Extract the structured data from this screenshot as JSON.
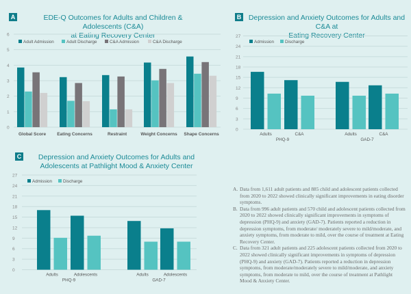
{
  "colors": {
    "background": "#dff0f0",
    "admission": "#0a7f8c",
    "discharge": "#55c3c1",
    "ca_admission": "#787478",
    "ca_discharge": "#d0d0d0",
    "badge": "#0f7d8a",
    "title": "#1a8a96",
    "grid": "#c8dcdc",
    "axis_text": "#8a8a8a"
  },
  "chart_data": [
    {
      "id": "A",
      "type": "bar",
      "badge": "A",
      "title_lines": [
        "EDE-Q Outcomes for Adults and Children & Adolescents (C&A)",
        "at Eating Recovery Center"
      ],
      "categories": [
        "Global Score",
        "Eating Concerns",
        "Restraint",
        "Weight Concerns",
        "Shape Concerns"
      ],
      "series": [
        {
          "name": "Adult Admission",
          "color_key": "admission",
          "values": [
            3.85,
            3.23,
            3.36,
            4.17,
            4.56
          ]
        },
        {
          "name": "Adult Discharge",
          "color_key": "discharge",
          "values": [
            2.3,
            1.7,
            1.15,
            3.02,
            3.45
          ]
        },
        {
          "name": "C&A Admission",
          "color_key": "ca_admission",
          "values": [
            3.54,
            2.85,
            3.27,
            3.76,
            4.2
          ]
        },
        {
          "name": "C&A Discharge",
          "color_key": "ca_discharge",
          "values": [
            2.21,
            1.68,
            1.15,
            2.85,
            3.32
          ]
        }
      ],
      "ylim": [
        0,
        6
      ],
      "yticks": [
        "0",
        "1",
        "2",
        "3",
        "4",
        "5",
        "6"
      ],
      "grid": true,
      "legend": "top-left",
      "xlabel": "",
      "ylabel": ""
    },
    {
      "id": "B",
      "type": "bar",
      "badge": "B",
      "title_lines": [
        "Depression and Anxiety Outcomes for Adults and C&A at",
        "Eating Recovery Center"
      ],
      "groups": [
        {
          "label": "PHQ-9",
          "categories": [
            "Adults",
            "C&A"
          ]
        },
        {
          "label": "GAD-7",
          "categories": [
            "Adults",
            "C&A"
          ]
        }
      ],
      "series": [
        {
          "name": "Admission",
          "color_key": "admission",
          "values": [
            16.6,
            14.2,
            13.7,
            12.7
          ]
        },
        {
          "name": "Discharge",
          "color_key": "discharge",
          "values": [
            10.3,
            9.7,
            9.7,
            10.3
          ]
        }
      ],
      "ylim": [
        0,
        27
      ],
      "yticks": [
        "0",
        "3",
        "6",
        "9",
        "12",
        "15",
        "18",
        "21",
        "24",
        "27"
      ],
      "grid": true,
      "legend": "top-left",
      "xlabel": "",
      "ylabel": ""
    },
    {
      "id": "C",
      "type": "bar",
      "badge": "C",
      "title_lines": [
        "Depression and Anxiety Outcomes for Adults and",
        "Adolescents at Pathlight Mood & Anxiety Center"
      ],
      "groups": [
        {
          "label": "PHQ-9",
          "categories": [
            "Adults",
            "Adolescents"
          ]
        },
        {
          "label": "GAD-7",
          "categories": [
            "Adults",
            "Adolescents"
          ]
        }
      ],
      "series": [
        {
          "name": "Admission",
          "color_key": "admission",
          "values": [
            17.0,
            15.4,
            13.9,
            11.8
          ]
        },
        {
          "name": "Discharge",
          "color_key": "discharge",
          "values": [
            9.1,
            9.7,
            8.0,
            8.0
          ]
        }
      ],
      "ylim": [
        0,
        27
      ],
      "yticks": [
        "0",
        "3",
        "6",
        "9",
        "12",
        "15",
        "18",
        "21",
        "24",
        "27"
      ],
      "grid": true,
      "legend": "top-left",
      "xlabel": "",
      "ylabel": ""
    }
  ],
  "notes": [
    {
      "letter": "A.",
      "text": "Data from 1,611 adult patients and 885 child and adolescent patients collected from 2020 to 2022 showed clinically significant improvements in eating disorder symptoms."
    },
    {
      "letter": "B.",
      "text": "Data from 996 adult patients and 570 child and adolescent patients collected from 2020 to 2022 showed clinically significant improvements in symptoms of depression (PHQ-9) and anxiety (GAD-7). Patients reported a reduction in depression symptoms, from moderate/ moderately severe to mild/moderate, and anxiety symptoms, from moderate to mild, over the course of treatment at Eating Recovery Center."
    },
    {
      "letter": "C.",
      "text": "Data from 321 adult patients and 225 adolescent patients collected from 2020 to 2022 showed clinically significant improvements in symptoms of depression (PHQ-9) and anxiety (GAD-7). Patients reported a reduction in depression symptoms, from moderate/moderately severe to mild/moderate, and anxiety symptoms, from moderate to mild, over the course of treatment at Pathlight Mood & Anxiety Center."
    }
  ]
}
